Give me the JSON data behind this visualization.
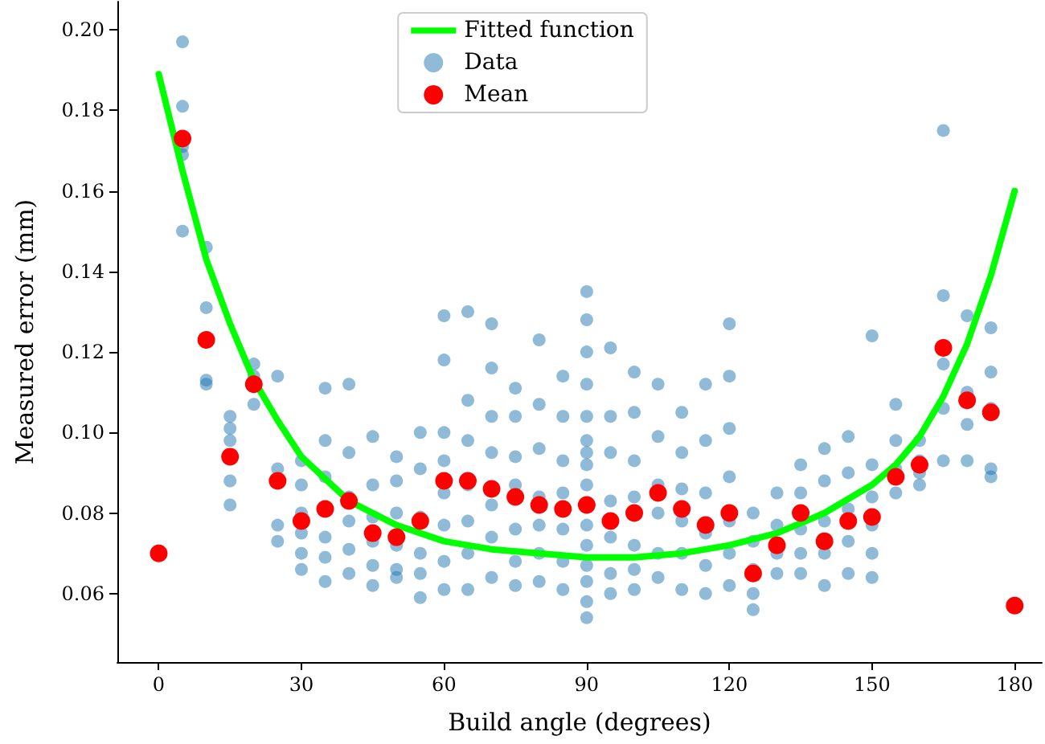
{
  "chart_data": {
    "type": "scatter",
    "xlabel": "Build angle (degrees)",
    "ylabel": "Measured error (mm)",
    "xlim": [
      -8.7,
      185.7
    ],
    "xticks": [
      0,
      30,
      60,
      90,
      120,
      150,
      180
    ],
    "ylim": [
      0.043,
      0.207
    ],
    "yticks": [
      0.06,
      0.08,
      {
        "value": 0.1,
        "label": "0.10"
      },
      0.12,
      0.14,
      0.16,
      0.18,
      {
        "value": 0.2,
        "label": "0.20"
      }
    ],
    "grid": false,
    "legend": "top",
    "marker": "circle",
    "line_style": "solid",
    "series": [
      {
        "name": "Fitted function",
        "type": "line",
        "marker": "none",
        "color": "#00ff00",
        "x": [
          0,
          5,
          10,
          15,
          20,
          25,
          30,
          40,
          50,
          60,
          70,
          80,
          90,
          100,
          110,
          120,
          130,
          140,
          150,
          155,
          160,
          165,
          170,
          175,
          180
        ],
        "values": [
          0.189,
          0.165,
          0.143,
          0.127,
          0.113,
          0.103,
          0.094,
          0.083,
          0.077,
          0.073,
          0.071,
          0.07,
          0.069,
          0.069,
          0.07,
          0.072,
          0.075,
          0.08,
          0.087,
          0.092,
          0.099,
          0.109,
          0.122,
          0.139,
          0.16
        ]
      },
      {
        "name": "Data",
        "color": "#1f77b4",
        "x": [
          5,
          5,
          5,
          5,
          5,
          10,
          10,
          10,
          10,
          15,
          15,
          15,
          15,
          15,
          20,
          20,
          20,
          25,
          25,
          25,
          25,
          30,
          30,
          30,
          30,
          30,
          30,
          35,
          35,
          35,
          35,
          35,
          35,
          40,
          40,
          40,
          40,
          40,
          40,
          45,
          45,
          45,
          45,
          45,
          45,
          50,
          50,
          50,
          50,
          50,
          50,
          55,
          55,
          55,
          55,
          55,
          55,
          60,
          60,
          60,
          60,
          60,
          60,
          60,
          60,
          65,
          65,
          65,
          65,
          65,
          65,
          65,
          70,
          70,
          70,
          70,
          70,
          70,
          70,
          75,
          75,
          75,
          75,
          75,
          75,
          75,
          80,
          80,
          80,
          80,
          80,
          80,
          80,
          85,
          85,
          85,
          85,
          85,
          85,
          85,
          90,
          90,
          90,
          90,
          90,
          90,
          90,
          90,
          90,
          90,
          90,
          90,
          90,
          90,
          90,
          95,
          95,
          95,
          95,
          95,
          95,
          95,
          100,
          100,
          100,
          100,
          100,
          100,
          100,
          105,
          105,
          105,
          105,
          105,
          105,
          110,
          110,
          110,
          110,
          110,
          110,
          115,
          115,
          115,
          115,
          115,
          115,
          120,
          120,
          120,
          120,
          120,
          120,
          120,
          125,
          125,
          125,
          125,
          125,
          130,
          130,
          130,
          130,
          135,
          135,
          135,
          135,
          135,
          140,
          140,
          140,
          140,
          140,
          145,
          145,
          145,
          145,
          145,
          150,
          150,
          150,
          150,
          150,
          150,
          155,
          155,
          155,
          155,
          160,
          160,
          160,
          160,
          165,
          165,
          165,
          165,
          165,
          170,
          170,
          170,
          170,
          175,
          175,
          175,
          175,
          175
        ],
        "values": [
          0.197,
          0.181,
          0.171,
          0.169,
          0.15,
          0.146,
          0.131,
          0.113,
          0.112,
          0.104,
          0.101,
          0.098,
          0.088,
          0.082,
          0.117,
          0.114,
          0.107,
          0.114,
          0.091,
          0.077,
          0.073,
          0.093,
          0.087,
          0.08,
          0.075,
          0.07,
          0.066,
          0.111,
          0.098,
          0.089,
          0.074,
          0.069,
          0.063,
          0.112,
          0.095,
          0.084,
          0.078,
          0.071,
          0.065,
          0.099,
          0.087,
          0.079,
          0.073,
          0.067,
          0.062,
          0.094,
          0.088,
          0.08,
          0.072,
          0.066,
          0.064,
          0.1,
          0.091,
          0.079,
          0.07,
          0.065,
          0.059,
          0.129,
          0.118,
          0.1,
          0.093,
          0.085,
          0.077,
          0.068,
          0.061,
          0.13,
          0.108,
          0.098,
          0.087,
          0.078,
          0.07,
          0.061,
          0.127,
          0.116,
          0.104,
          0.095,
          0.082,
          0.074,
          0.064,
          0.111,
          0.104,
          0.094,
          0.087,
          0.076,
          0.068,
          0.062,
          0.123,
          0.107,
          0.096,
          0.084,
          0.077,
          0.07,
          0.063,
          0.114,
          0.104,
          0.093,
          0.085,
          0.076,
          0.068,
          0.061,
          0.135,
          0.128,
          0.12,
          0.112,
          0.104,
          0.098,
          0.092,
          0.087,
          0.095,
          0.077,
          0.072,
          0.067,
          0.063,
          0.058,
          0.054,
          0.121,
          0.104,
          0.095,
          0.083,
          0.074,
          0.065,
          0.06,
          0.115,
          0.105,
          0.093,
          0.084,
          0.072,
          0.066,
          0.061,
          0.112,
          0.099,
          0.087,
          0.08,
          0.07,
          0.064,
          0.105,
          0.095,
          0.086,
          0.078,
          0.07,
          0.061,
          0.112,
          0.098,
          0.085,
          0.075,
          0.067,
          0.06,
          0.127,
          0.114,
          0.101,
          0.089,
          0.078,
          0.07,
          0.062,
          0.08,
          0.073,
          0.066,
          0.06,
          0.056,
          0.085,
          0.077,
          0.07,
          0.065,
          0.092,
          0.085,
          0.076,
          0.07,
          0.065,
          0.096,
          0.088,
          0.078,
          0.07,
          0.062,
          0.099,
          0.09,
          0.081,
          0.073,
          0.065,
          0.124,
          0.092,
          0.084,
          0.077,
          0.07,
          0.064,
          0.107,
          0.098,
          0.091,
          0.085,
          0.098,
          0.093,
          0.09,
          0.087,
          0.175,
          0.134,
          0.117,
          0.106,
          0.093,
          0.129,
          0.11,
          0.102,
          0.093,
          0.126,
          0.115,
          0.106,
          0.091,
          0.089
        ]
      },
      {
        "name": "Mean",
        "color": "#ff0000",
        "x": [
          0,
          5,
          10,
          15,
          20,
          25,
          30,
          35,
          40,
          45,
          50,
          55,
          60,
          65,
          70,
          75,
          80,
          85,
          90,
          95,
          100,
          105,
          110,
          115,
          120,
          125,
          130,
          135,
          140,
          145,
          150,
          155,
          160,
          165,
          170,
          175,
          180
        ],
        "values": [
          0.07,
          0.173,
          0.123,
          0.094,
          0.112,
          0.088,
          0.078,
          0.081,
          0.083,
          0.075,
          0.074,
          0.078,
          0.088,
          0.088,
          0.086,
          0.084,
          0.082,
          0.081,
          0.082,
          0.078,
          0.08,
          0.085,
          0.081,
          0.077,
          0.08,
          0.065,
          0.072,
          0.08,
          0.073,
          0.078,
          0.079,
          0.089,
          0.092,
          0.121,
          0.108,
          0.105,
          0.057
        ]
      }
    ]
  }
}
